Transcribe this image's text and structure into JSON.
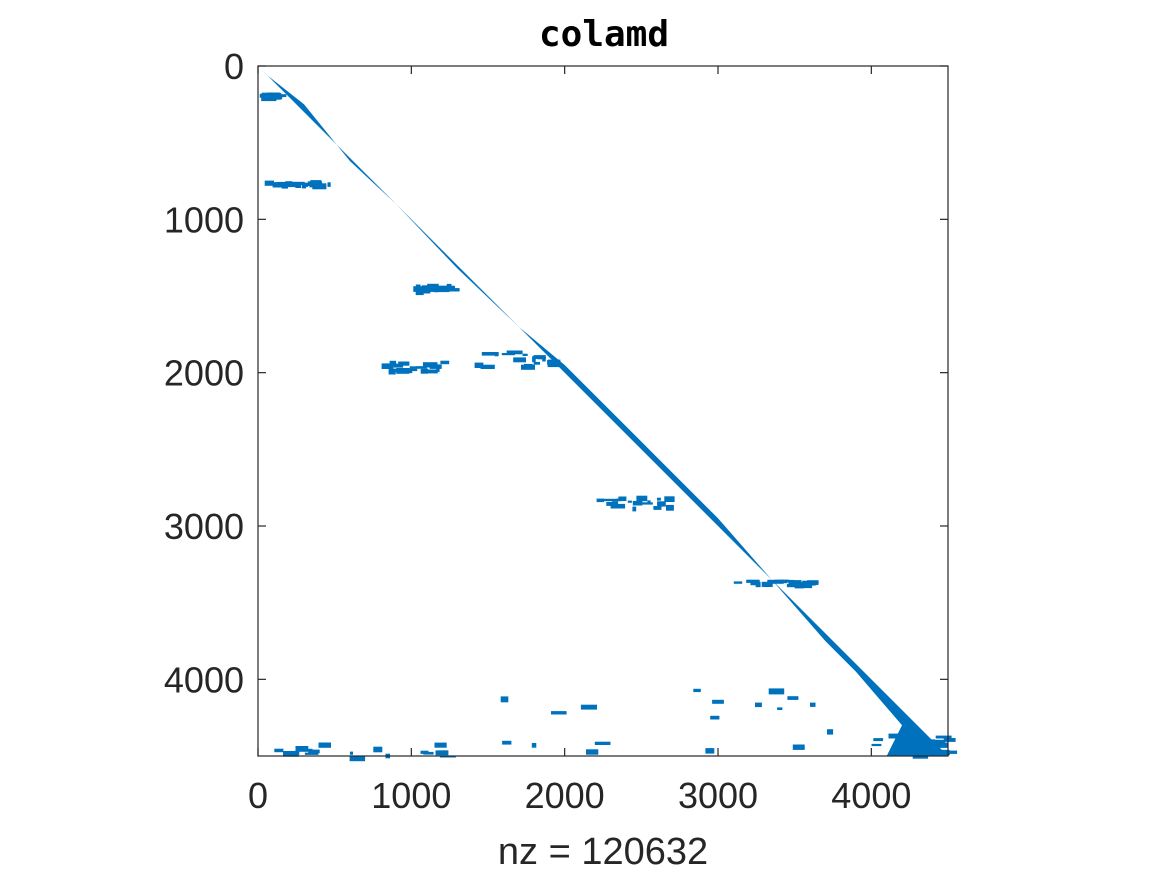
{
  "chart_data": {
    "type": "scatter",
    "title": "colamd",
    "xlabel": "nz = 120632",
    "ylabel": "",
    "xlim": [
      0,
      4500
    ],
    "ylim": [
      0,
      4500
    ],
    "y_reversed": true,
    "x_ticks": [
      0,
      1000,
      2000,
      3000,
      4000
    ],
    "y_ticks": [
      0,
      1000,
      2000,
      3000,
      4000
    ],
    "x_tick_labels": [
      "0",
      "1000",
      "2000",
      "3000",
      "4000"
    ],
    "y_tick_labels": [
      "0",
      "1000",
      "2000",
      "3000",
      "4000"
    ],
    "marker_color": "#0072BD",
    "grid": false,
    "nonzeros_outline": [
      [
        0,
        0
      ],
      [
        4500,
        4500
      ],
      [
        4100,
        4500
      ],
      [
        4200,
        4300
      ],
      [
        3900,
        3950
      ],
      [
        3700,
        3750
      ],
      [
        3000,
        2950
      ],
      [
        2600,
        2550
      ],
      [
        2000,
        1950
      ],
      [
        1700,
        1700
      ],
      [
        1300,
        1320
      ],
      [
        900,
        900
      ],
      [
        600,
        620
      ],
      [
        300,
        250
      ],
      [
        60,
        60
      ]
    ],
    "nonzero_clusters": [
      {
        "x": [
          0,
          100
        ],
        "y": [
          170,
          200
        ]
      },
      {
        "x": [
          0,
          500
        ],
        "y": [
          740,
          770
        ]
      },
      {
        "x": [
          1000,
          1300
        ],
        "y": [
          1420,
          1460
        ]
      },
      {
        "x": [
          780,
          1200
        ],
        "y": [
          1920,
          1980
        ]
      },
      {
        "x": [
          1400,
          1900
        ],
        "y": [
          1850,
          1950
        ]
      },
      {
        "x": [
          2200,
          2700
        ],
        "y": [
          2800,
          2880
        ]
      },
      {
        "x": [
          3100,
          3600
        ],
        "y": [
          3350,
          3380
        ]
      },
      {
        "x": [
          1400,
          4000
        ],
        "y": [
          4050,
          4500
        ]
      },
      {
        "x": [
          0,
          1200
        ],
        "y": [
          4400,
          4500
        ]
      },
      {
        "x": [
          4000,
          4500
        ],
        "y": [
          4350,
          4500
        ]
      }
    ]
  }
}
